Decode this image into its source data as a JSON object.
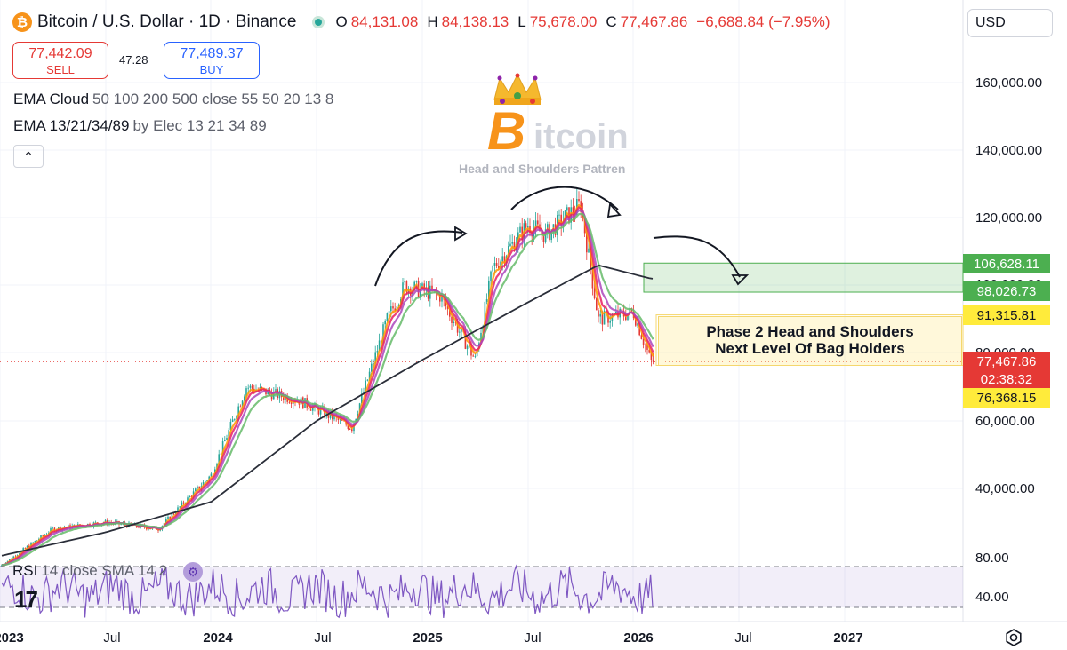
{
  "header": {
    "coin_letter": "₿",
    "title": "Bitcoin / U.S. Dollar · 1D · Binance",
    "ohlc": {
      "o_key": "O",
      "o": "84,131.08",
      "h_key": "H",
      "h": "84,138.13",
      "l_key": "L",
      "l": "75,678.00",
      "c_key": "C",
      "c": "77,467.86",
      "change": "−6,688.84 (−7.95%)"
    },
    "currency": "USD"
  },
  "trade": {
    "sell_price": "77,442.09",
    "sell_label": "SELL",
    "spread": "47.28",
    "buy_price": "77,489.37",
    "buy_label": "BUY"
  },
  "indicators": [
    {
      "name": "EMA Cloud",
      "args": "50 100 200 500 close 55 50 20 13 8"
    },
    {
      "name": "EMA 13/21/34/89",
      "args": "by Elec 13 21 34 89"
    }
  ],
  "collapse_symbol": "⌃",
  "watermark": {
    "letter": "B",
    "text": "itcoin",
    "subtitle": "Head and Shoulders Pattren"
  },
  "annotation": {
    "line1": "Phase 2 Head and Shoulders",
    "line2": "Next Level Of Bag Holders"
  },
  "rsi": {
    "name": "RSI",
    "args": "14 close SMA 14 2",
    "levels": [
      "80.00",
      "40.00"
    ]
  },
  "tv_logo": "17",
  "price_tags": [
    {
      "text": "106,628.11",
      "bg": "#4caf50",
      "fg": "#ffffff"
    },
    {
      "text": "98,026.73",
      "bg": "#4caf50",
      "fg": "#ffffff"
    },
    {
      "text": "91,315.81",
      "bg": "#ffeb3b",
      "fg": "#131722"
    },
    {
      "text": "77,467.86",
      "bg": "#e53935",
      "fg": "#ffffff"
    },
    {
      "text": "02:38:32",
      "bg": "#e53935",
      "fg": "#ffffff"
    },
    {
      "text": "76,368.15",
      "bg": "#ffeb3b",
      "fg": "#131722"
    }
  ],
  "y_axis_labels": [
    "160,000.00",
    "140,000.00",
    "120,000.00",
    "100,000.00",
    "80,000.00",
    "60,000.00",
    "40,000.00"
  ],
  "x_axis_labels": [
    {
      "text": "2023",
      "bold": true
    },
    {
      "text": "Jul",
      "bold": false
    },
    {
      "text": "2024",
      "bold": true
    },
    {
      "text": "Jul",
      "bold": false
    },
    {
      "text": "2025",
      "bold": true
    },
    {
      "text": "Jul",
      "bold": false
    },
    {
      "text": "2026",
      "bold": true
    },
    {
      "text": "Jul",
      "bold": false
    },
    {
      "text": "2027",
      "bold": true
    }
  ],
  "colors": {
    "bull": "#26a69a",
    "bear": "#e53935",
    "zone_green": "#4caf50",
    "zone_yellow": "#f5d76e",
    "rsi": "#7e57c2"
  },
  "chart_data": {
    "type": "line",
    "title": "Bitcoin / U.S. Dollar · 1D · Binance",
    "xlabel": "",
    "ylabel": "",
    "ylim": [
      20000,
      170000
    ],
    "series": [
      {
        "name": "Bitcoin / U.S. Dollar",
        "x": [
          "2023-01",
          "2023-04",
          "2023-07",
          "2023-10",
          "2024-01",
          "2024-03",
          "2024-06",
          "2024-09",
          "2024-11",
          "2024-12",
          "2025-02",
          "2025-04",
          "2025-05",
          "2025-07",
          "2025-08",
          "2025-10",
          "2025-11",
          "2026-01",
          "2026-02"
        ],
        "values": [
          17000,
          28000,
          30000,
          28000,
          44000,
          70000,
          66000,
          58000,
          90000,
          100000,
          97000,
          78000,
          105000,
          118000,
          115000,
          124000,
          90000,
          92000,
          77467
        ]
      },
      {
        "name": "",
        "x": [
          "2023-01",
          "2023-07",
          "2024-01",
          "2024-07",
          "2025-01",
          "2025-07",
          "2025-11",
          "2026-02"
        ],
        "values": [
          20000,
          27000,
          36000,
          60000,
          78000,
          95000,
          106000,
          102000
        ]
      }
    ],
    "zones": [
      {
        "label": "green",
        "y_from": 98026.73,
        "y_to": 106628.11
      },
      {
        "label": "yellow",
        "y_from": 76368.15,
        "y_to": 91315.81
      }
    ],
    "rsi": {
      "ylim": [
        20,
        90
      ],
      "levels": [
        80,
        40
      ]
    }
  }
}
